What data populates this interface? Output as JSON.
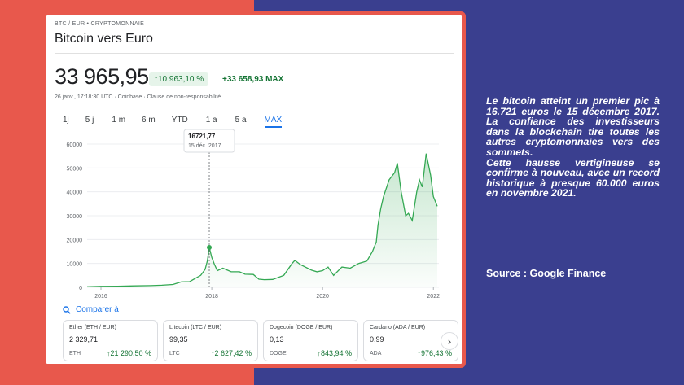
{
  "card": {
    "breadcrumb": "BTC / EUR • CRYPTOMONNAIE",
    "title": "Bitcoin vers Euro",
    "price": "33 965,95",
    "pct_change": "↑10 963,10 %",
    "abs_change": "+33 658,93 MAX",
    "timestamp": "26 janv., 17:18:30 UTC · Coinbase · Clause de non-responsabilité",
    "ranges": [
      "1j",
      "5 j",
      "1 m",
      "6 m",
      "YTD",
      "1 a",
      "5 a",
      "MAX"
    ],
    "active_range": "MAX",
    "tooltip_value": "16721,77",
    "tooltip_date": "15 déc. 2017",
    "compare_label": "Comparer à",
    "tiles": [
      {
        "name": "Ether (ETH / EUR)",
        "price": "2 329,71",
        "symbol": "ETH",
        "change": "↑21 290,50 %"
      },
      {
        "name": "Litecoin (LTC / EUR)",
        "price": "99,35",
        "symbol": "LTC",
        "change": "↑2 627,42 %"
      },
      {
        "name": "Dogecoin (DOGE / EUR)",
        "price": "0,13",
        "symbol": "DOGE",
        "change": "↑843,94 %"
      },
      {
        "name": "Cardano (ADA / EUR)",
        "price": "0,99",
        "symbol": "ADA",
        "change": "↑976,43 %"
      }
    ],
    "colors": {
      "accent": "#1a73e8",
      "positive": "#137333",
      "frame": "#e8584c"
    }
  },
  "chart_data": {
    "type": "area",
    "xlabel": "",
    "ylabel": "",
    "x_ticks": [
      "2016",
      "2018",
      "2020",
      "2022"
    ],
    "y_ticks": [
      "0",
      "10000",
      "20000",
      "30000",
      "40000",
      "50000",
      "60000"
    ],
    "ylim": [
      0,
      60000
    ],
    "xlim": [
      2015.75,
      2022.1
    ],
    "series": [
      {
        "x": [
          2015.75,
          2016.0,
          2016.3,
          2016.6,
          2016.9,
          2017.1,
          2017.3,
          2017.45,
          2017.6,
          2017.7,
          2017.8,
          2017.88,
          2017.92,
          2017.955,
          2018.0,
          2018.05,
          2018.1,
          2018.2,
          2018.35,
          2018.5,
          2018.6,
          2018.75,
          2018.85,
          2018.95,
          2019.1,
          2019.3,
          2019.45,
          2019.5,
          2019.6,
          2019.8,
          2019.9,
          2020.0,
          2020.1,
          2020.2,
          2020.35,
          2020.5,
          2020.65,
          2020.8,
          2020.9,
          2020.97,
          2021.0,
          2021.05,
          2021.1,
          2021.2,
          2021.3,
          2021.35,
          2021.42,
          2021.5,
          2021.55,
          2021.62,
          2021.7,
          2021.75,
          2021.8,
          2021.87,
          2021.95,
          2022.0,
          2022.07
        ],
        "y": [
          250,
          400,
          450,
          600,
          700,
          900,
          1200,
          2300,
          2400,
          3700,
          5000,
          7500,
          11000,
          16721,
          12500,
          9500,
          7000,
          8000,
          6500,
          6500,
          5500,
          5400,
          3400,
          3200,
          3300,
          5000,
          10000,
          11300,
          9500,
          7200,
          6500,
          7000,
          8500,
          5000,
          8500,
          8000,
          10000,
          11000,
          15000,
          19000,
          26000,
          33000,
          38000,
          45000,
          48000,
          52000,
          40000,
          30000,
          31000,
          28000,
          40000,
          45000,
          42000,
          56000,
          47000,
          38000,
          33966
        ]
      }
    ],
    "marker": {
      "x": 2017.955,
      "y": 16721.77
    }
  },
  "side": {
    "paragraph1": "Le bitcoin atteint un premier pic à 16.721 euros le 15 décembre 2017. La confiance des investisseurs dans la blockchain tire toutes les autres cryptomonnaies vers des sommets.",
    "paragraph2": "Cette hausse vertigineuse se confirme à nouveau, avec un record historique à presque 60.000 euros en novembre 2021.",
    "source_label": "Source",
    "source_rest": " : Google Finance"
  }
}
